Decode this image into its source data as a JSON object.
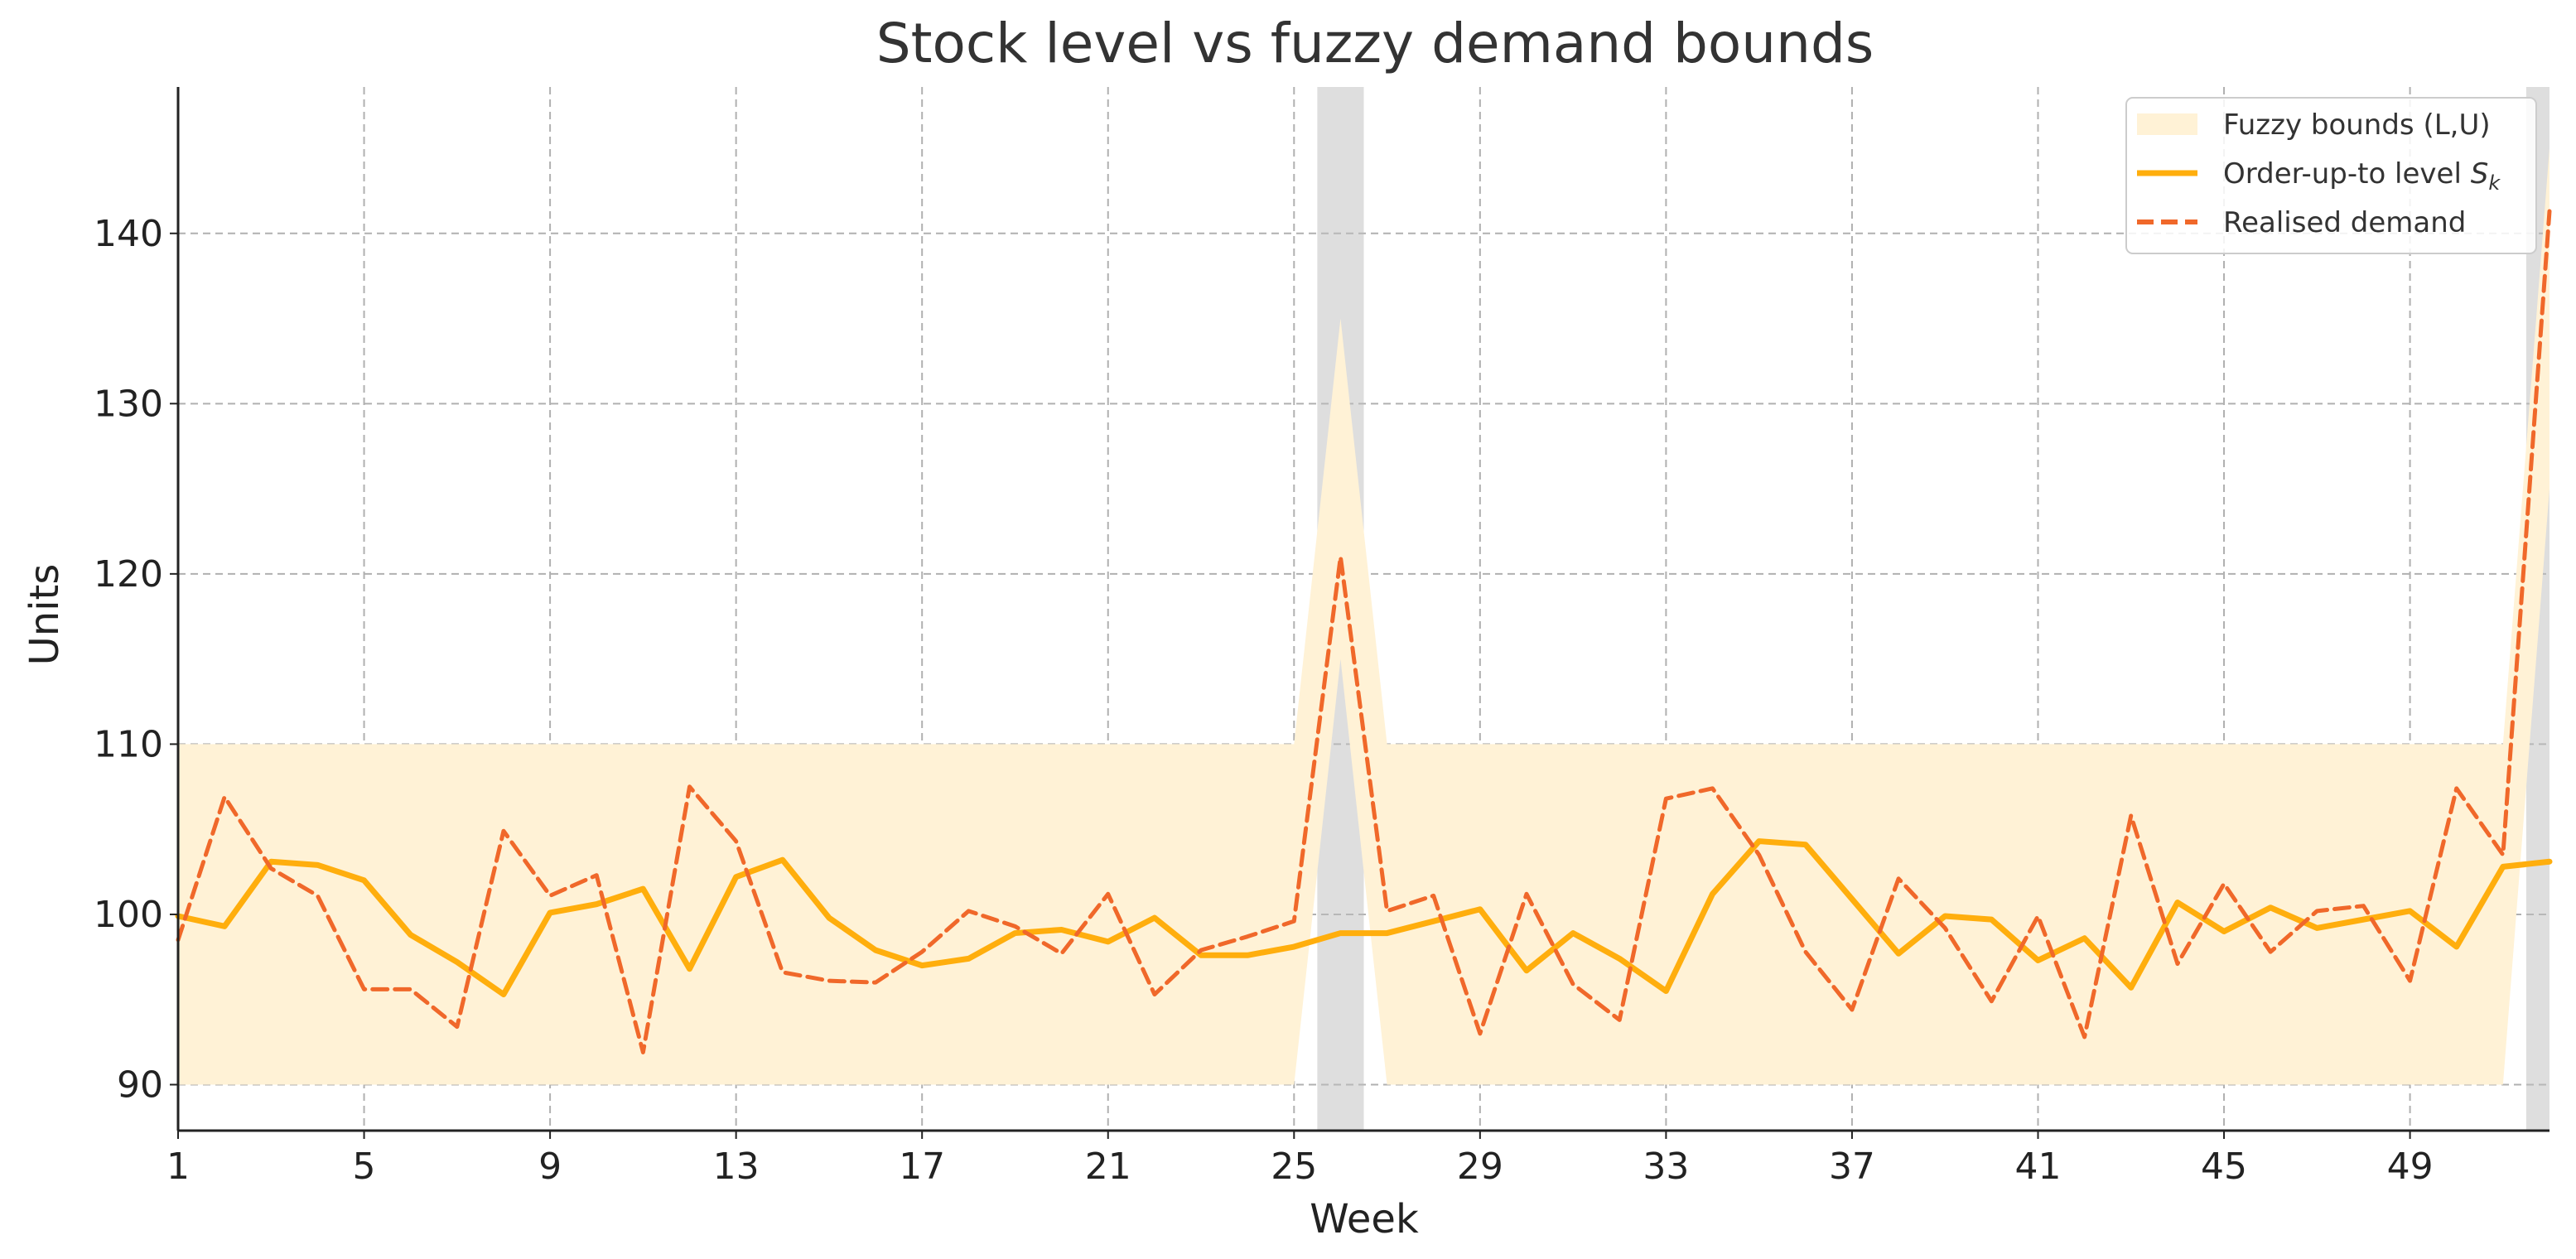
{
  "chart_data": {
    "type": "line",
    "title": "Stock level vs fuzzy demand bounds",
    "xlabel": "Week",
    "ylabel": "Units",
    "xlim": [
      1,
      52
    ],
    "ylim": [
      87.3,
      148.6
    ],
    "xticks": [
      1,
      5,
      9,
      13,
      17,
      21,
      25,
      29,
      33,
      37,
      41,
      45,
      49
    ],
    "yticks": [
      90,
      100,
      110,
      120,
      130,
      140
    ],
    "grid": true,
    "legend_position": "top-right",
    "x": [
      1,
      2,
      3,
      4,
      5,
      6,
      7,
      8,
      9,
      10,
      11,
      12,
      13,
      14,
      15,
      16,
      17,
      18,
      19,
      20,
      21,
      22,
      23,
      24,
      25,
      26,
      27,
      28,
      29,
      30,
      31,
      32,
      33,
      34,
      35,
      36,
      37,
      38,
      39,
      40,
      41,
      42,
      43,
      44,
      45,
      46,
      47,
      48,
      49,
      50,
      51,
      52
    ],
    "shaded_weeks": [
      26,
      52
    ],
    "series": [
      {
        "name": "Fuzzy bounds (L,U)",
        "kind": "band",
        "color": "#fff2d6",
        "lower": [
          90,
          90,
          90,
          90,
          90,
          90,
          90,
          90,
          90,
          90,
          90,
          90,
          90,
          90,
          90,
          90,
          90,
          90,
          90,
          90,
          90,
          90,
          90,
          90,
          90,
          115,
          90,
          90,
          90,
          90,
          90,
          90,
          90,
          90,
          90,
          90,
          90,
          90,
          90,
          90,
          90,
          90,
          90,
          90,
          90,
          90,
          90,
          90,
          90,
          90,
          90,
          125
        ],
        "upper": [
          110,
          110,
          110,
          110,
          110,
          110,
          110,
          110,
          110,
          110,
          110,
          110,
          110,
          110,
          110,
          110,
          110,
          110,
          110,
          110,
          110,
          110,
          110,
          110,
          110,
          135,
          110,
          110,
          110,
          110,
          110,
          110,
          110,
          110,
          110,
          110,
          110,
          110,
          110,
          110,
          110,
          110,
          110,
          110,
          110,
          110,
          110,
          110,
          110,
          110,
          110,
          145
        ]
      },
      {
        "name": "Order-up-to level ",
        "name_sub": "k",
        "name_var": "S",
        "kind": "line",
        "color": "#ffae0d",
        "values": [
          99.9,
          99.3,
          103.1,
          102.9,
          102.0,
          98.8,
          97.2,
          95.3,
          100.1,
          100.6,
          101.5,
          96.8,
          102.2,
          103.2,
          99.8,
          97.9,
          97.0,
          97.4,
          98.9,
          99.1,
          98.4,
          99.8,
          97.6,
          97.6,
          98.1,
          98.9,
          98.9,
          99.6,
          100.3,
          96.7,
          98.9,
          97.4,
          95.5,
          101.2,
          104.3,
          104.1,
          100.9,
          97.7,
          99.9,
          99.7,
          97.3,
          98.6,
          95.7,
          100.7,
          99.0,
          100.4,
          99.2,
          99.7,
          100.2,
          98.1,
          102.8,
          103.1
        ]
      },
      {
        "name": "Realised demand",
        "kind": "dashed",
        "color": "#f0682a",
        "values": [
          98.5,
          106.9,
          102.7,
          101.1,
          95.6,
          95.6,
          93.4,
          104.9,
          101.1,
          102.3,
          91.9,
          107.5,
          104.3,
          96.6,
          96.1,
          96.0,
          97.8,
          100.2,
          99.3,
          97.7,
          101.2,
          95.3,
          97.9,
          98.7,
          99.6,
          121.0,
          100.2,
          101.1,
          93.0,
          101.2,
          95.9,
          93.8,
          106.8,
          107.4,
          103.5,
          97.8,
          94.4,
          102.1,
          99.2,
          94.9,
          99.9,
          92.8,
          105.8,
          97.1,
          101.8,
          97.8,
          100.2,
          100.5,
          96.1,
          107.4,
          103.5,
          141.3
        ]
      }
    ]
  }
}
